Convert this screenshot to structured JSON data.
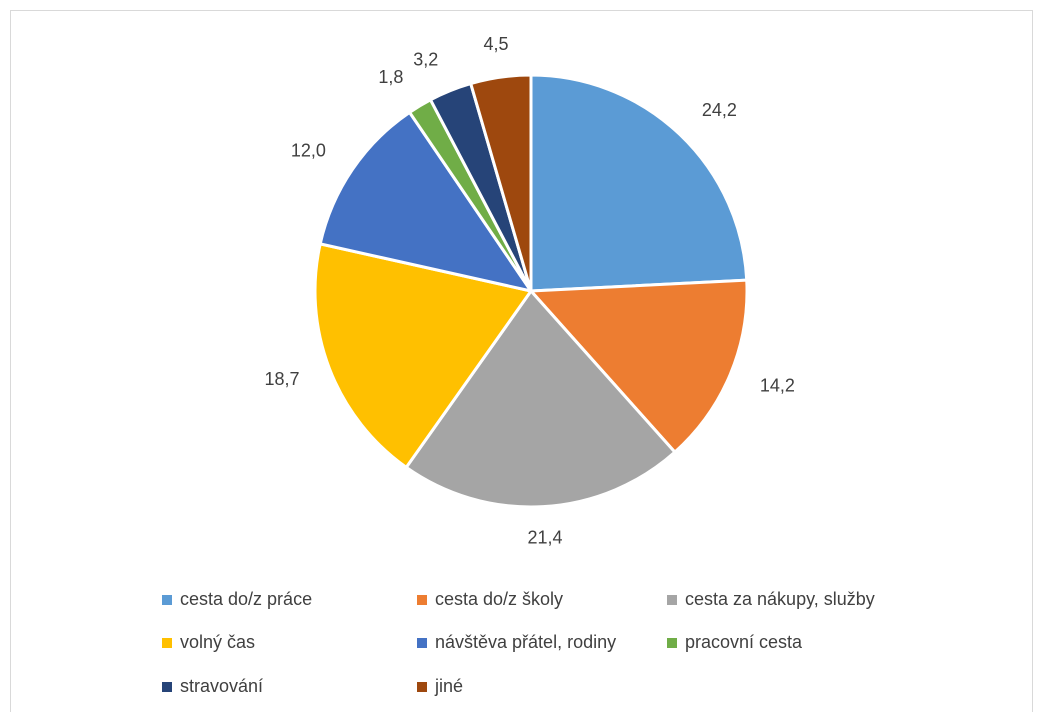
{
  "chart_data": {
    "type": "pie",
    "categories": [
      "cesta do/z práce",
      "cesta do/z školy",
      "cesta za nákupy, služby",
      "volný čas",
      "návštěva přátel, rodiny",
      "pracovní cesta",
      "stravování",
      "jiné"
    ],
    "values": [
      24.2,
      14.2,
      21.4,
      18.7,
      12.0,
      1.8,
      3.2,
      4.5
    ],
    "value_labels": [
      "24,2",
      "14,2",
      "21,4",
      "18,7",
      "12,0",
      "1,8",
      "3,2",
      "4,5"
    ],
    "colors": [
      "#5b9bd5",
      "#ed7d31",
      "#a5a5a5",
      "#ffc000",
      "#4472c4",
      "#70ad47",
      "#264478",
      "#9e480e"
    ],
    "legend": "bottom"
  }
}
